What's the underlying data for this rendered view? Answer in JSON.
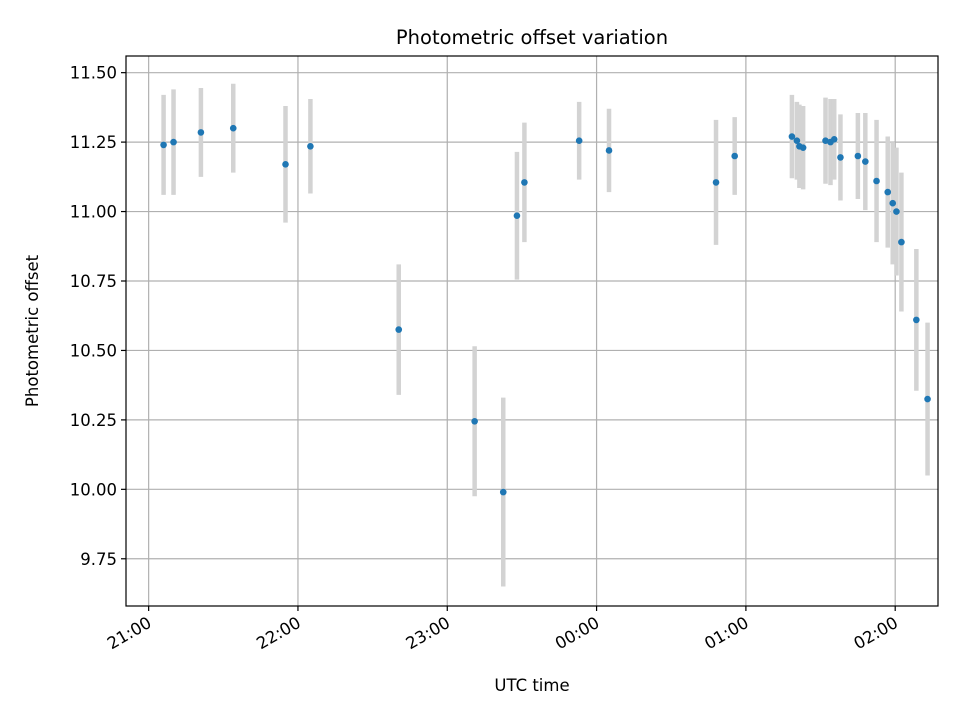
{
  "chart_data": {
    "type": "scatter",
    "title": "Photometric offset variation",
    "xlabel": "UTC time",
    "ylabel": "Photometric offset",
    "x_axis_type": "time",
    "x_unit": "minutes after 21:00 UTC",
    "x_ticks": [
      {
        "value": 0,
        "label": "21:00"
      },
      {
        "value": 60,
        "label": "22:00"
      },
      {
        "value": 120,
        "label": "23:00"
      },
      {
        "value": 180,
        "label": "00:00"
      },
      {
        "value": 240,
        "label": "01:00"
      },
      {
        "value": 300,
        "label": "02:00"
      }
    ],
    "y_ticks": [
      {
        "value": 9.75,
        "label": "9.75"
      },
      {
        "value": 10.0,
        "label": "10.00"
      },
      {
        "value": 10.25,
        "label": "10.25"
      },
      {
        "value": 10.5,
        "label": "10.50"
      },
      {
        "value": 10.75,
        "label": "10.75"
      },
      {
        "value": 11.0,
        "label": "11.00"
      },
      {
        "value": 11.25,
        "label": "11.25"
      },
      {
        "value": 11.5,
        "label": "11.50"
      }
    ],
    "xlim": [
      -9.1,
      317.2
    ],
    "ylim": [
      9.58,
      11.56
    ],
    "grid": true,
    "x_tick_rotation": "30 degrees",
    "series": [
      {
        "marker_color": "#1f77b4",
        "errorbar_color": "#d3d3d3",
        "points": [
          {
            "x": 6.0,
            "y": 11.24,
            "err": 0.18
          },
          {
            "x": 10.0,
            "y": 11.25,
            "err": 0.19
          },
          {
            "x": 21.0,
            "y": 11.285,
            "err": 0.16
          },
          {
            "x": 34.0,
            "y": 11.3,
            "err": 0.16
          },
          {
            "x": 55.0,
            "y": 11.17,
            "err": 0.21
          },
          {
            "x": 65.0,
            "y": 11.235,
            "err": 0.17
          },
          {
            "x": 100.5,
            "y": 10.575,
            "err": 0.235
          },
          {
            "x": 131.0,
            "y": 10.245,
            "err": 0.27
          },
          {
            "x": 142.5,
            "y": 9.99,
            "err": 0.34
          },
          {
            "x": 148.0,
            "y": 10.985,
            "err": 0.23
          },
          {
            "x": 151.0,
            "y": 11.105,
            "err": 0.215
          },
          {
            "x": 173.0,
            "y": 11.255,
            "err": 0.14
          },
          {
            "x": 185.0,
            "y": 11.22,
            "err": 0.15
          },
          {
            "x": 228.0,
            "y": 11.105,
            "err": 0.225
          },
          {
            "x": 235.5,
            "y": 11.2,
            "err": 0.14
          },
          {
            "x": 258.5,
            "y": 11.27,
            "err": 0.15
          },
          {
            "x": 260.5,
            "y": 11.255,
            "err": 0.14
          },
          {
            "x": 261.5,
            "y": 11.235,
            "err": 0.15
          },
          {
            "x": 263.0,
            "y": 11.23,
            "err": 0.15
          },
          {
            "x": 272.0,
            "y": 11.255,
            "err": 0.155
          },
          {
            "x": 274.0,
            "y": 11.25,
            "err": 0.155
          },
          {
            "x": 275.5,
            "y": 11.26,
            "err": 0.145
          },
          {
            "x": 278.0,
            "y": 11.195,
            "err": 0.155
          },
          {
            "x": 285.0,
            "y": 11.2,
            "err": 0.155
          },
          {
            "x": 288.0,
            "y": 11.18,
            "err": 0.175
          },
          {
            "x": 292.5,
            "y": 11.11,
            "err": 0.22
          },
          {
            "x": 297.0,
            "y": 11.07,
            "err": 0.2
          },
          {
            "x": 299.0,
            "y": 11.03,
            "err": 0.22
          },
          {
            "x": 300.5,
            "y": 11.0,
            "err": 0.23
          },
          {
            "x": 302.5,
            "y": 10.89,
            "err": 0.25
          },
          {
            "x": 308.5,
            "y": 10.61,
            "err": 0.255
          },
          {
            "x": 313.0,
            "y": 10.325,
            "err": 0.275
          }
        ]
      }
    ]
  }
}
